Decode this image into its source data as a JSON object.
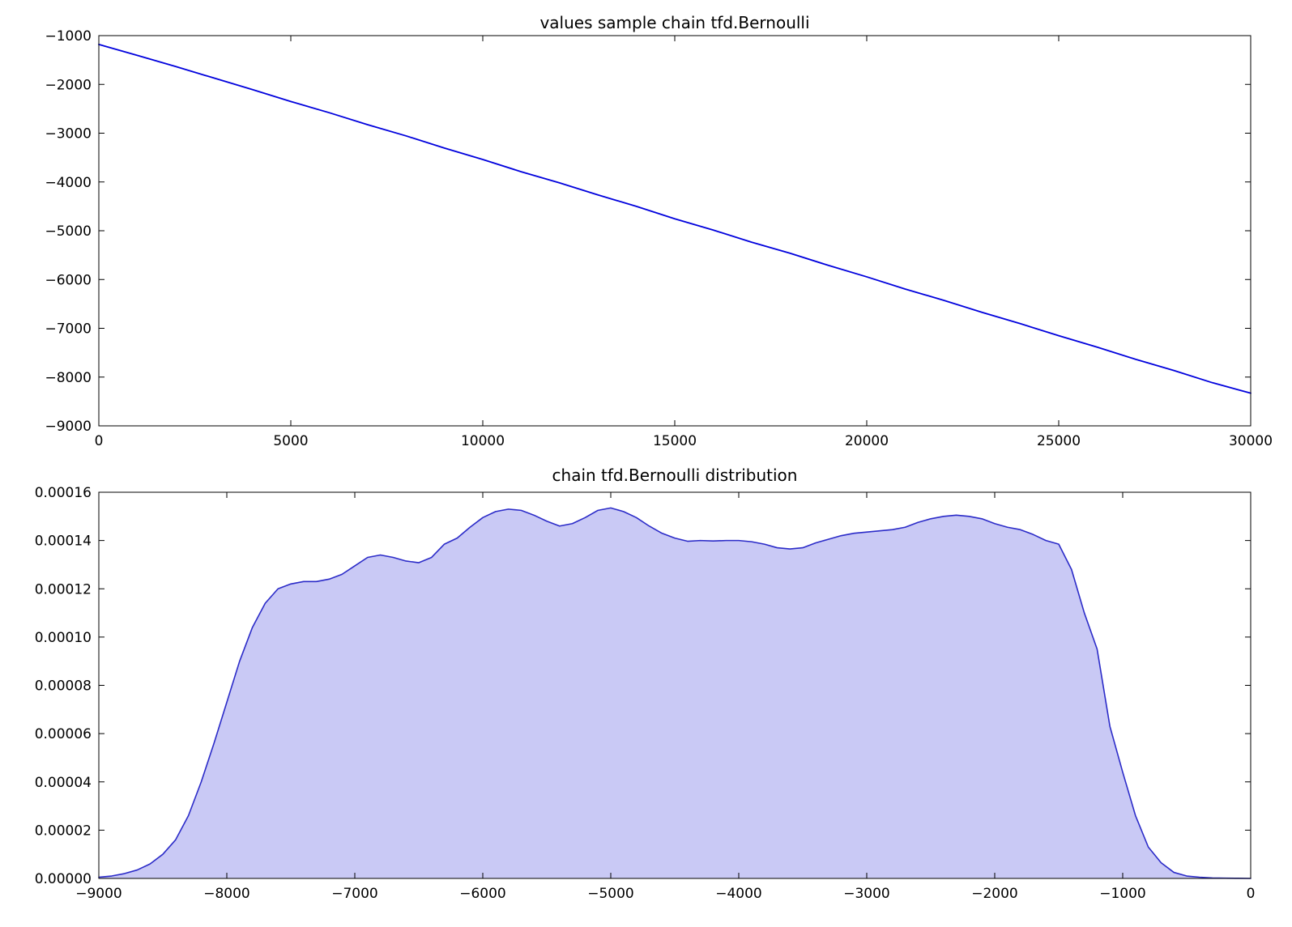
{
  "figure": {
    "background": "#ffffff",
    "text_color": "#000000",
    "axis_color": "#000000"
  },
  "chart_data": [
    {
      "type": "line",
      "title": "values sample chain tfd.Bernoulli",
      "xlabel": "",
      "ylabel": "",
      "grid": false,
      "legend_position": "none",
      "xlim": [
        0,
        30000
      ],
      "ylim": [
        -9000,
        -1000
      ],
      "xticks": [
        0,
        5000,
        10000,
        15000,
        20000,
        25000,
        30000
      ],
      "xtick_labels": [
        "0",
        "5000",
        "10000",
        "15000",
        "20000",
        "25000",
        "30000"
      ],
      "yticks": [
        -9000,
        -8000,
        -7000,
        -6000,
        -5000,
        -4000,
        -3000,
        -2000,
        -1000
      ],
      "ytick_labels": [
        "−9000",
        "−8000",
        "−7000",
        "−6000",
        "−5000",
        "−4000",
        "−3000",
        "−2000",
        "−1000"
      ],
      "line_color": "#0000dd",
      "line_width": 1.8,
      "x_start": 0,
      "x_step": 1000,
      "y_scale": 1,
      "y": [
        -1180,
        -1405,
        -1632,
        -1870,
        -2105,
        -2350,
        -2580,
        -2825,
        -3055,
        -3305,
        -3540,
        -3790,
        -4018,
        -4265,
        -4500,
        -4755,
        -4985,
        -5235,
        -5460,
        -5710,
        -5945,
        -6195,
        -6425,
        -6672,
        -6905,
        -7152,
        -7385,
        -7635,
        -7865,
        -8115,
        -8330
      ]
    },
    {
      "type": "area",
      "title": "chain tfd.Bernoulli distribution",
      "xlabel": "",
      "ylabel": "",
      "grid": false,
      "legend_position": "none",
      "xlim": [
        -9000,
        0
      ],
      "ylim": [
        0,
        0.00016
      ],
      "xticks": [
        -9000,
        -8000,
        -7000,
        -6000,
        -5000,
        -4000,
        -3000,
        -2000,
        -1000,
        0
      ],
      "xtick_labels": [
        "−9000",
        "−8000",
        "−7000",
        "−6000",
        "−5000",
        "−4000",
        "−3000",
        "−2000",
        "−1000",
        "0"
      ],
      "yticks": [
        0,
        2e-05,
        4e-05,
        6e-05,
        8e-05,
        0.0001,
        0.00012,
        0.00014,
        0.00016
      ],
      "ytick_labels": [
        "0.00000",
        "0.00002",
        "0.00004",
        "0.00006",
        "0.00008",
        "0.00010",
        "0.00012",
        "0.00014",
        "0.00016"
      ],
      "line_color": "#2b2bc8",
      "line_width": 1.6,
      "fill_color": "rgba(40, 40, 215, 0.25)",
      "x_start": -9000,
      "x_step": 100,
      "y_scale": 1e-05,
      "y": [
        0.05,
        0.1,
        0.2,
        0.35,
        0.6,
        1.0,
        1.6,
        2.6,
        4.0,
        5.6,
        7.3,
        9.0,
        10.4,
        11.4,
        12.0,
        12.2,
        12.3,
        12.3,
        12.4,
        12.6,
        12.95,
        13.3,
        13.4,
        13.3,
        13.15,
        13.08,
        13.3,
        13.85,
        14.1,
        14.55,
        14.95,
        15.2,
        15.3,
        15.25,
        15.05,
        14.8,
        14.6,
        14.7,
        14.95,
        15.25,
        15.35,
        15.2,
        14.95,
        14.6,
        14.3,
        14.1,
        13.97,
        14.0,
        13.98,
        14.0,
        14.0,
        13.95,
        13.85,
        13.7,
        13.65,
        13.7,
        13.9,
        14.05,
        14.2,
        14.3,
        14.35,
        14.4,
        14.45,
        14.55,
        14.75,
        14.9,
        15.0,
        15.05,
        15.0,
        14.9,
        14.7,
        14.55,
        14.45,
        14.25,
        14.0,
        13.85,
        12.8,
        11.0,
        9.5,
        6.3,
        4.4,
        2.6,
        1.3,
        0.65,
        0.25,
        0.1,
        0.05,
        0.02,
        0.01,
        0.005,
        0.0
      ]
    }
  ]
}
